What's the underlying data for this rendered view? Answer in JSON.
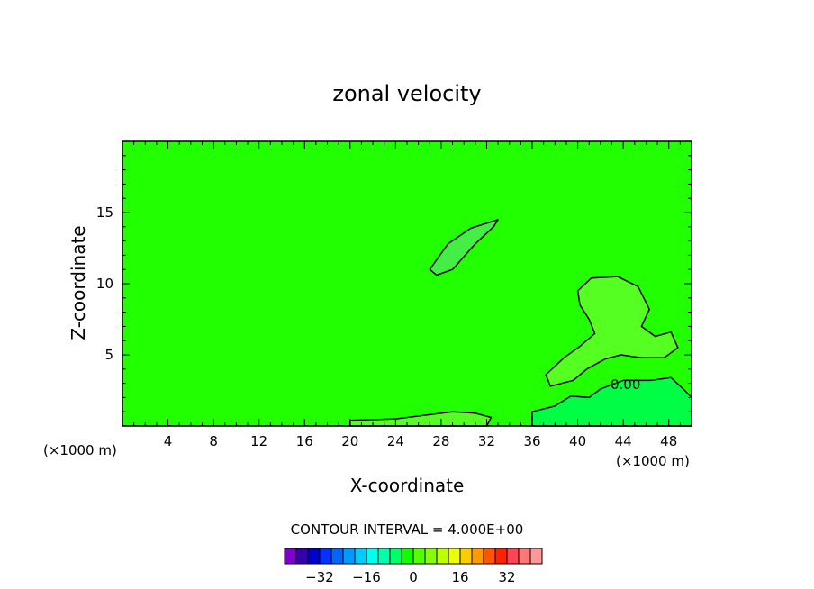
{
  "chart_data": {
    "type": "heatmap",
    "title": "zonal velocity",
    "xlabel": "X-coordinate",
    "ylabel": "Z-coordinate",
    "x_unit": "(×1000 m)",
    "x_unit_right": "(×1000 m)",
    "xlim": [
      0,
      50
    ],
    "ylim": [
      0,
      20
    ],
    "x_ticks": [
      4,
      8,
      12,
      16,
      20,
      24,
      28,
      32,
      36,
      40,
      44,
      48
    ],
    "y_ticks": [
      5,
      10,
      15
    ],
    "background_value_color": "#22ff00",
    "contour_interval_label": "CONTOUR INTERVAL = 4.000E+00",
    "contour_label": "0.00",
    "regions": [
      {
        "name": "weak negative lobe",
        "color": "#44ee44",
        "points": [
          [
            27.0,
            11.0
          ],
          [
            28.6,
            12.8
          ],
          [
            30.6,
            13.9
          ],
          [
            33.0,
            14.5
          ],
          [
            32.6,
            14.0
          ],
          [
            31.0,
            12.8
          ],
          [
            29.0,
            11.0
          ],
          [
            27.6,
            10.6
          ],
          [
            27.0,
            11.0
          ]
        ]
      },
      {
        "name": "weak positive plume",
        "color": "#55ff22",
        "points": [
          [
            37.2,
            3.6
          ],
          [
            38.8,
            4.8
          ],
          [
            40.2,
            5.6
          ],
          [
            41.5,
            6.5
          ],
          [
            41.0,
            7.5
          ],
          [
            40.2,
            8.5
          ],
          [
            40.0,
            9.5
          ],
          [
            41.2,
            10.4
          ],
          [
            43.5,
            10.5
          ],
          [
            45.3,
            9.8
          ],
          [
            46.3,
            8.2
          ],
          [
            45.6,
            7.0
          ],
          [
            46.8,
            6.3
          ],
          [
            48.2,
            6.6
          ],
          [
            48.8,
            5.5
          ],
          [
            47.6,
            4.8
          ],
          [
            45.6,
            4.8
          ],
          [
            43.8,
            5.0
          ],
          [
            42.4,
            4.7
          ],
          [
            40.8,
            4.0
          ],
          [
            39.6,
            3.2
          ],
          [
            37.6,
            2.8
          ],
          [
            37.2,
            3.6
          ]
        ]
      },
      {
        "name": "lower-right negative region",
        "color": "#00ff44",
        "points": [
          [
            36.0,
            0.0
          ],
          [
            36.0,
            1.0
          ],
          [
            38.0,
            1.4
          ],
          [
            39.4,
            2.1
          ],
          [
            41.0,
            2.0
          ],
          [
            42.0,
            2.6
          ],
          [
            44.0,
            3.2
          ],
          [
            46.4,
            3.2
          ],
          [
            48.2,
            3.4
          ],
          [
            49.4,
            2.5
          ],
          [
            50.0,
            2.0
          ],
          [
            50.0,
            0.0
          ]
        ]
      },
      {
        "name": "bottom positive strip",
        "color": "#55ff22",
        "points": [
          [
            20.0,
            0.0
          ],
          [
            20.0,
            0.4
          ],
          [
            24.0,
            0.5
          ],
          [
            27.0,
            0.8
          ],
          [
            29.0,
            1.0
          ],
          [
            31.0,
            0.9
          ],
          [
            32.4,
            0.6
          ],
          [
            32.0,
            0.0
          ]
        ]
      }
    ],
    "colorbar": {
      "colors": [
        "#7f00cc",
        "#3300aa",
        "#0000cc",
        "#0033ff",
        "#0066ff",
        "#0099ff",
        "#00ccff",
        "#00ffee",
        "#00ffaa",
        "#00ff66",
        "#11ff00",
        "#55ff00",
        "#88ff00",
        "#bbff00",
        "#eeff00",
        "#ffcc00",
        "#ff9900",
        "#ff5500",
        "#ff2200",
        "#ff4455",
        "#ff7777",
        "#ff9999"
      ],
      "tick_labels": [
        "−32",
        "−16",
        "0",
        "16",
        "32"
      ],
      "tick_values": [
        -32,
        -16,
        0,
        16,
        32
      ]
    }
  }
}
